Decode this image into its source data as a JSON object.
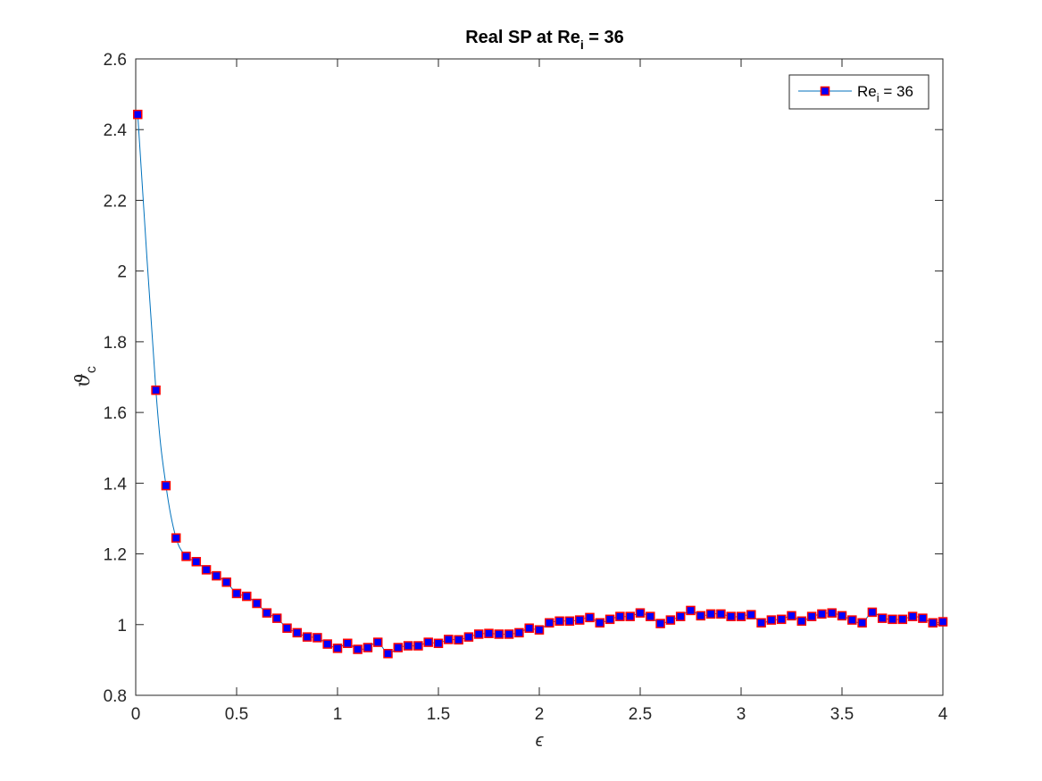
{
  "chart_data": {
    "type": "line",
    "title": {
      "main": "Real SP at Re",
      "sub": "i",
      "tail": " = 36"
    },
    "xlabel": "ϵ",
    "ylabel": {
      "main": "ϑ",
      "sub": "c"
    },
    "xlim": [
      0,
      4
    ],
    "ylim": [
      0.8,
      2.6
    ],
    "xticks": [
      0,
      0.5,
      1,
      1.5,
      2,
      2.5,
      3,
      3.5,
      4
    ],
    "xtick_labels": [
      "0",
      "0.5",
      "1",
      "1.5",
      "2",
      "2.5",
      "3",
      "3.5",
      "4"
    ],
    "yticks": [
      0.8,
      1,
      1.2,
      1.4,
      1.6,
      1.8,
      2,
      2.2,
      2.4,
      2.6
    ],
    "ytick_labels": [
      "0.8",
      "1",
      "1.2",
      "1.4",
      "1.6",
      "1.8",
      "2",
      "2.2",
      "2.4",
      "2.6"
    ],
    "grid": false,
    "legend_position": "top-right",
    "series": [
      {
        "name": {
          "main": "Re",
          "sub": "i",
          "tail": " = 36"
        },
        "line_color": "#0072BD",
        "marker": "square",
        "marker_face": "#0000FF",
        "marker_edge": "#FF0000",
        "x": [
          0.01,
          0.1,
          0.15,
          0.2,
          0.25,
          0.3,
          0.35,
          0.4,
          0.45,
          0.5,
          0.55,
          0.6,
          0.65,
          0.7,
          0.75,
          0.8,
          0.85,
          0.9,
          0.95,
          1.0,
          1.05,
          1.1,
          1.15,
          1.2,
          1.25,
          1.3,
          1.35,
          1.4,
          1.45,
          1.5,
          1.55,
          1.6,
          1.65,
          1.7,
          1.75,
          1.8,
          1.85,
          1.9,
          1.95,
          2.0,
          2.05,
          2.1,
          2.15,
          2.2,
          2.25,
          2.3,
          2.35,
          2.4,
          2.45,
          2.5,
          2.55,
          2.6,
          2.65,
          2.7,
          2.75,
          2.8,
          2.85,
          2.9,
          2.95,
          3.0,
          3.05,
          3.1,
          3.15,
          3.2,
          3.25,
          3.3,
          3.35,
          3.4,
          3.45,
          3.5,
          3.55,
          3.6,
          3.65,
          3.7,
          3.75,
          3.8,
          3.85,
          3.9,
          3.95,
          4.0
        ],
        "y": [
          2.443,
          1.663,
          1.393,
          1.245,
          1.193,
          1.178,
          1.155,
          1.138,
          1.12,
          1.088,
          1.08,
          1.06,
          1.033,
          1.018,
          0.99,
          0.977,
          0.965,
          0.963,
          0.945,
          0.933,
          0.947,
          0.93,
          0.935,
          0.95,
          0.918,
          0.935,
          0.94,
          0.94,
          0.95,
          0.947,
          0.958,
          0.957,
          0.965,
          0.973,
          0.975,
          0.973,
          0.973,
          0.977,
          0.99,
          0.985,
          1.005,
          1.01,
          1.01,
          1.013,
          1.02,
          1.005,
          1.015,
          1.023,
          1.023,
          1.033,
          1.023,
          1.003,
          1.013,
          1.023,
          1.04,
          1.025,
          1.03,
          1.03,
          1.023,
          1.023,
          1.028,
          1.005,
          1.013,
          1.015,
          1.025,
          1.01,
          1.023,
          1.03,
          1.033,
          1.025,
          1.013,
          1.005,
          1.035,
          1.018,
          1.015,
          1.015,
          1.023,
          1.018,
          1.005,
          1.008
        ]
      }
    ]
  }
}
